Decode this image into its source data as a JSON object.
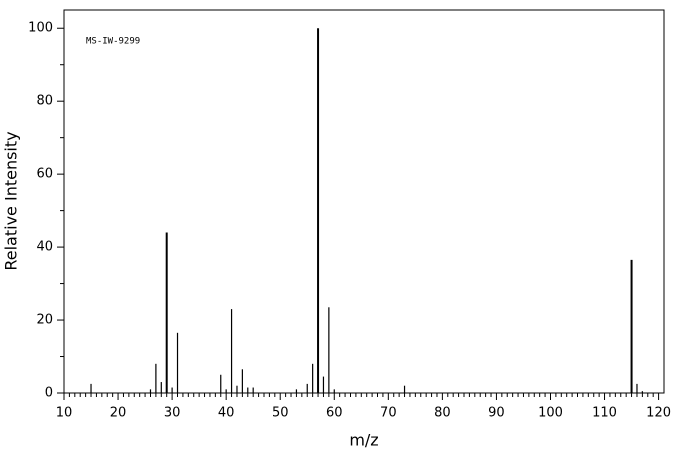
{
  "chart_data": {
    "type": "stem",
    "annotation": "MS-IW-9299",
    "xlabel": "m/z",
    "ylabel": "Relative Intensity",
    "x": [
      15,
      26,
      27,
      28,
      29,
      30,
      31,
      39,
      40,
      41,
      42,
      43,
      44,
      45,
      53,
      55,
      56,
      57,
      58,
      59,
      60,
      73,
      115,
      116,
      117
    ],
    "values": [
      2.5,
      1,
      8,
      3,
      44,
      1.5,
      16.5,
      5,
      1,
      23,
      2,
      6.5,
      1.5,
      1.5,
      1,
      2.5,
      8,
      100,
      4.5,
      23.5,
      1,
      2,
      36.5,
      2.5,
      0.5
    ],
    "color": "#000000",
    "xlim": [
      10,
      121
    ],
    "ylim": [
      0,
      105
    ],
    "xticks": [
      10,
      20,
      30,
      40,
      50,
      60,
      70,
      80,
      90,
      100,
      110,
      120
    ],
    "yticks": [
      0,
      20,
      40,
      60,
      80,
      100
    ]
  }
}
